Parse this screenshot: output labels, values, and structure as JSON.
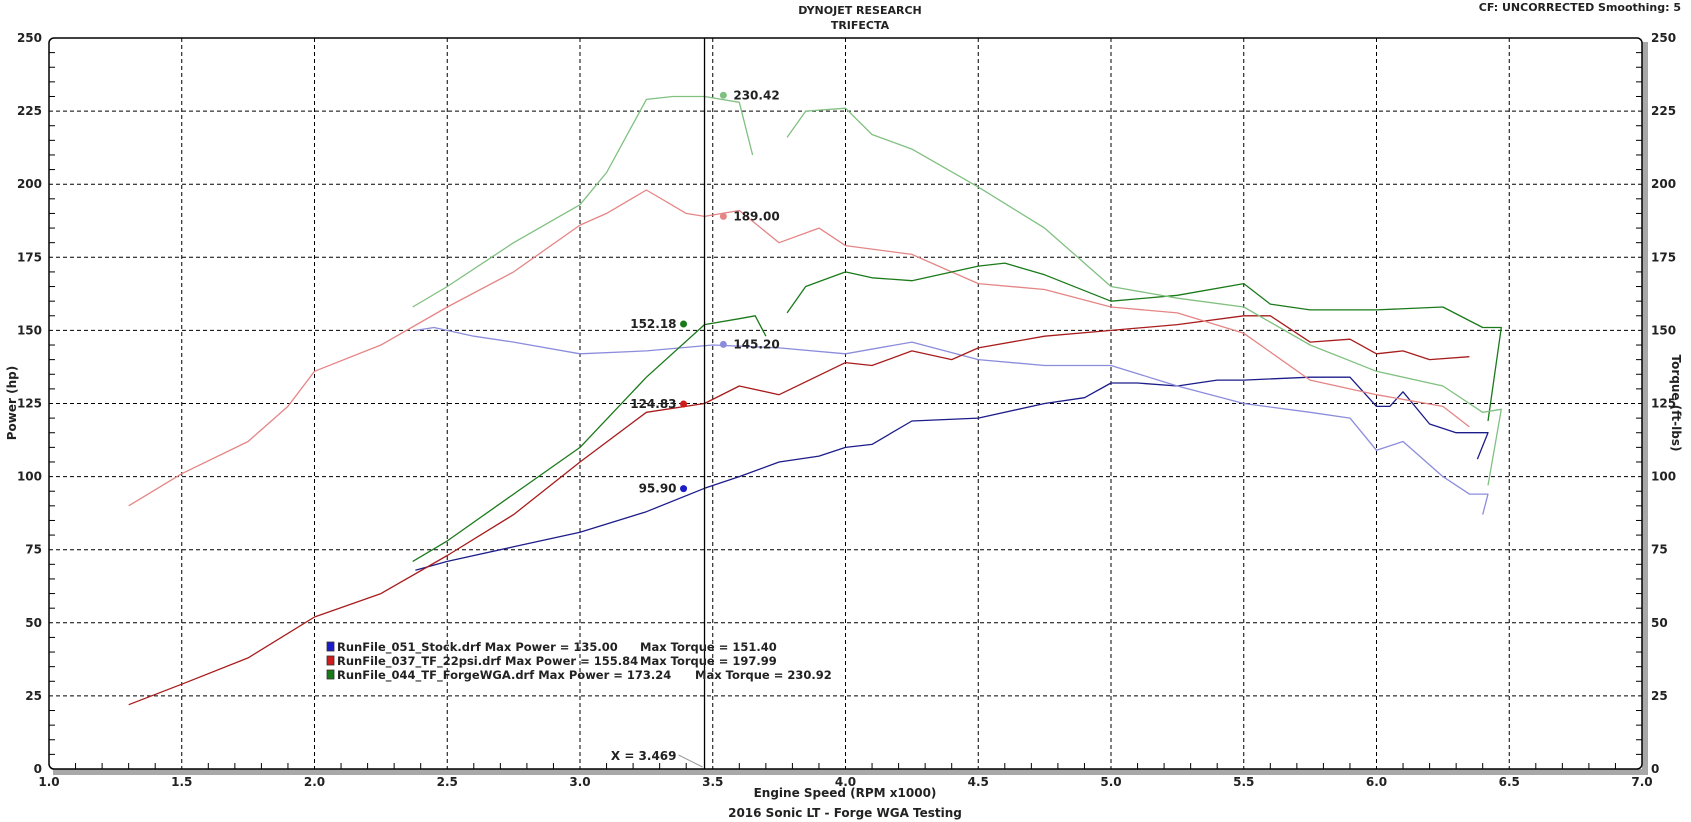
{
  "header": {
    "title_line1": "DYNOJET RESEARCH",
    "title_line2": "TRIFECTA",
    "cf_info": "CF: UNCORRECTED  Smoothing: 5"
  },
  "chart_data": {
    "type": "line",
    "title": "2016 Sonic LT - Forge WGA Testing",
    "xlabel": "Engine Speed (RPM x1000)",
    "ylabel": "Power (hp)",
    "y2label": "Torque (ft-lbs)",
    "xlim": [
      1.0,
      7.0
    ],
    "ylim": [
      0,
      250
    ],
    "grid": true,
    "x_ticks": [
      "1.0",
      "1.5",
      "2.0",
      "2.5",
      "3.0",
      "3.5",
      "4.0",
      "4.5",
      "5.0",
      "5.5",
      "6.0",
      "6.5",
      "7.0"
    ],
    "y_ticks": [
      "0",
      "25",
      "50",
      "75",
      "100",
      "125",
      "150",
      "175",
      "200",
      "225",
      "250"
    ],
    "cursor": {
      "x": 3.469,
      "label": "X = 3.469"
    },
    "series": [
      {
        "name": "RunFile_051_Stock.drf Power",
        "kind": "power",
        "color": "#1c1c8a",
        "points": [
          [
            2.38,
            68
          ],
          [
            2.5,
            71
          ],
          [
            2.75,
            76
          ],
          [
            3.0,
            81
          ],
          [
            3.25,
            88
          ],
          [
            3.469,
            96
          ],
          [
            3.6,
            100
          ],
          [
            3.75,
            105
          ],
          [
            3.9,
            107
          ],
          [
            4.0,
            110
          ],
          [
            4.1,
            111
          ],
          [
            4.25,
            119
          ],
          [
            4.5,
            120
          ],
          [
            4.75,
            125
          ],
          [
            4.9,
            127
          ],
          [
            5.0,
            132
          ],
          [
            5.1,
            132
          ],
          [
            5.25,
            131
          ],
          [
            5.4,
            133
          ],
          [
            5.5,
            133
          ],
          [
            5.75,
            134
          ],
          [
            5.9,
            134
          ],
          [
            6.0,
            124
          ],
          [
            6.05,
            124
          ],
          [
            6.1,
            129
          ],
          [
            6.2,
            118
          ],
          [
            6.3,
            115
          ],
          [
            6.42,
            115
          ],
          [
            6.38,
            106
          ]
        ]
      },
      {
        "name": "RunFile_051_Stock.drf Torque",
        "kind": "torque",
        "color": "#8c8cdc",
        "points": [
          [
            2.38,
            150
          ],
          [
            2.45,
            151
          ],
          [
            2.6,
            148
          ],
          [
            2.75,
            146
          ],
          [
            3.0,
            142
          ],
          [
            3.25,
            143
          ],
          [
            3.5,
            145
          ],
          [
            3.75,
            144
          ],
          [
            4.0,
            142
          ],
          [
            4.25,
            146
          ],
          [
            4.5,
            140
          ],
          [
            4.75,
            138
          ],
          [
            5.0,
            138
          ],
          [
            5.25,
            131
          ],
          [
            5.5,
            125
          ],
          [
            5.75,
            122
          ],
          [
            5.9,
            120
          ],
          [
            6.0,
            109
          ],
          [
            6.1,
            112
          ],
          [
            6.25,
            100
          ],
          [
            6.35,
            94
          ],
          [
            6.42,
            94
          ],
          [
            6.4,
            87
          ]
        ]
      },
      {
        "name": "RunFile_037_TF_22psi.drf Power",
        "kind": "power",
        "color": "#a81c1c",
        "points": [
          [
            1.3,
            22
          ],
          [
            1.5,
            29
          ],
          [
            1.75,
            38
          ],
          [
            2.0,
            52
          ],
          [
            2.25,
            60
          ],
          [
            2.5,
            73
          ],
          [
            2.75,
            87
          ],
          [
            3.0,
            105
          ],
          [
            3.25,
            122
          ],
          [
            3.469,
            125
          ],
          [
            3.6,
            131
          ],
          [
            3.75,
            128
          ],
          [
            4.0,
            139
          ],
          [
            4.1,
            138
          ],
          [
            4.25,
            143
          ],
          [
            4.4,
            140
          ],
          [
            4.5,
            144
          ],
          [
            4.75,
            148
          ],
          [
            5.0,
            150
          ],
          [
            5.25,
            152
          ],
          [
            5.5,
            155
          ],
          [
            5.6,
            155
          ],
          [
            5.75,
            146
          ],
          [
            5.9,
            147
          ],
          [
            6.0,
            142
          ],
          [
            6.1,
            143
          ],
          [
            6.2,
            140
          ],
          [
            6.35,
            141
          ]
        ]
      },
      {
        "name": "RunFile_037_TF_22psi.drf Torque",
        "kind": "torque",
        "color": "#e58585",
        "points": [
          [
            1.3,
            90
          ],
          [
            1.5,
            101
          ],
          [
            1.75,
            112
          ],
          [
            1.9,
            124
          ],
          [
            2.0,
            136
          ],
          [
            2.25,
            145
          ],
          [
            2.5,
            158
          ],
          [
            2.75,
            170
          ],
          [
            3.0,
            186
          ],
          [
            3.1,
            190
          ],
          [
            3.25,
            198
          ],
          [
            3.4,
            190
          ],
          [
            3.469,
            189
          ],
          [
            3.6,
            191
          ],
          [
            3.75,
            180
          ],
          [
            3.9,
            185
          ],
          [
            4.0,
            179
          ],
          [
            4.25,
            176
          ],
          [
            4.5,
            166
          ],
          [
            4.75,
            164
          ],
          [
            5.0,
            158
          ],
          [
            5.25,
            156
          ],
          [
            5.5,
            149
          ],
          [
            5.75,
            133
          ],
          [
            6.0,
            128
          ],
          [
            6.25,
            124
          ],
          [
            6.35,
            117
          ]
        ]
      },
      {
        "name": "RunFile_044_TF_ForgeWGA.drf Power",
        "kind": "power",
        "color": "#1a7a1a",
        "points": [
          [
            2.37,
            71
          ],
          [
            2.5,
            78
          ],
          [
            2.75,
            94
          ],
          [
            3.0,
            110
          ],
          [
            3.25,
            134
          ],
          [
            3.469,
            152
          ],
          [
            3.6,
            154
          ],
          [
            3.66,
            155
          ],
          [
            3.7,
            148
          ],
          null,
          [
            3.78,
            156
          ],
          [
            3.85,
            165
          ],
          [
            4.0,
            170
          ],
          [
            4.1,
            168
          ],
          [
            4.25,
            167
          ],
          [
            4.5,
            172
          ],
          [
            4.6,
            173
          ],
          [
            4.75,
            169
          ],
          [
            5.0,
            160
          ],
          [
            5.25,
            162
          ],
          [
            5.5,
            166
          ],
          [
            5.6,
            159
          ],
          [
            5.75,
            157
          ],
          [
            6.0,
            157
          ],
          [
            6.25,
            158
          ],
          [
            6.4,
            151
          ],
          [
            6.47,
            151
          ],
          [
            6.42,
            119
          ]
        ]
      },
      {
        "name": "RunFile_044_TF_ForgeWGA.drf Torque",
        "kind": "torque",
        "color": "#80c080",
        "points": [
          [
            2.37,
            158
          ],
          [
            2.5,
            165
          ],
          [
            2.75,
            180
          ],
          [
            3.0,
            193
          ],
          [
            3.1,
            204
          ],
          [
            3.25,
            229
          ],
          [
            3.35,
            230
          ],
          [
            3.469,
            230
          ],
          [
            3.6,
            228
          ],
          [
            3.65,
            210
          ],
          null,
          [
            3.78,
            216
          ],
          [
            3.85,
            225
          ],
          [
            4.0,
            226
          ],
          [
            4.1,
            217
          ],
          [
            4.25,
            212
          ],
          [
            4.5,
            199
          ],
          [
            4.75,
            185
          ],
          [
            5.0,
            165
          ],
          [
            5.25,
            161
          ],
          [
            5.5,
            158
          ],
          [
            5.75,
            145
          ],
          [
            6.0,
            136
          ],
          [
            6.25,
            131
          ],
          [
            6.4,
            122
          ],
          [
            6.47,
            123
          ],
          [
            6.42,
            97
          ]
        ]
      }
    ],
    "markers": [
      {
        "x": 3.39,
        "y": 152.18,
        "label": "152.18",
        "color": "#1a7a1a",
        "side": "left"
      },
      {
        "x": 3.39,
        "y": 124.83,
        "label": "124.83",
        "color": "#d01c1c",
        "side": "left"
      },
      {
        "x": 3.39,
        "y": 95.9,
        "label": "95.90",
        "color": "#1c1cc8",
        "side": "left"
      },
      {
        "x": 3.54,
        "y": 230.42,
        "label": "230.42",
        "color": "#80c080",
        "side": "right"
      },
      {
        "x": 3.54,
        "y": 189.0,
        "label": "189.00",
        "color": "#e58585",
        "side": "right"
      },
      {
        "x": 3.54,
        "y": 145.2,
        "label": "145.20",
        "color": "#8c8cdc",
        "side": "right"
      }
    ],
    "legend": {
      "placement": "lower-left",
      "entries": [
        {
          "file": "RunFile_051_Stock.drf Max Power = 135.00",
          "torque": "Max Torque = 151.40",
          "color": "#1c1cc8"
        },
        {
          "file": "RunFile_037_TF_22psi.drf Max Power = 155.84",
          "torque": "Max Torque = 197.99",
          "color": "#d01c1c"
        },
        {
          "file": "RunFile_044_TF_ForgeWGA.drf Max Power = 173.24",
          "torque": "Max Torque = 230.92",
          "color": "#1a7a1a"
        }
      ]
    }
  }
}
